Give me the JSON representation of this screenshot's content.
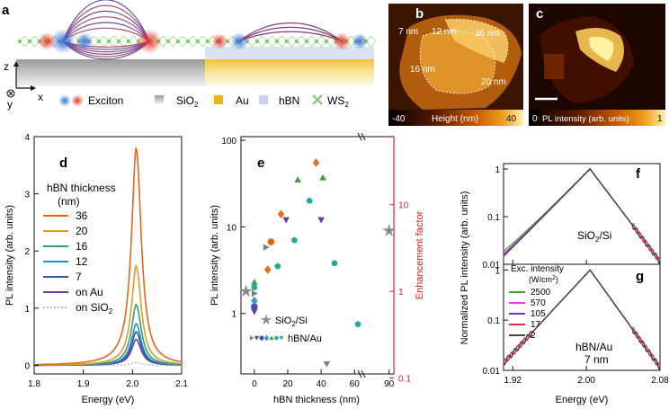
{
  "panel_letters": {
    "a": "a",
    "b": "b",
    "c": "c",
    "d": "d",
    "e": "e",
    "f": "f",
    "g": "g"
  },
  "panel_a": {
    "axes": {
      "z": "z",
      "x": "x",
      "y": "y"
    },
    "legend": [
      {
        "label": "Exciton",
        "color": "#e0503c"
      },
      {
        "label": "SiO2",
        "sub": "",
        "color": "#9a9a9a"
      },
      {
        "label": "Au",
        "color": "#f2b21a"
      },
      {
        "label": "hBN",
        "color": "#b9c8e6"
      },
      {
        "label": "WS",
        "sub": "2",
        "color": "#7cc36a"
      }
    ],
    "sio2_label": "SiO",
    "sio2_sub": "2"
  },
  "panel_b": {
    "labels": [
      "7 nm",
      "12 nm",
      "36 nm",
      "16 nm",
      "20 nm"
    ],
    "cbar_min": "-40",
    "cbar_title": "Height (nm)",
    "cbar_max": "40"
  },
  "panel_c": {
    "cbar_min": "0",
    "cbar_title": "PL intensity (arb. units)",
    "cbar_max": "1"
  },
  "chart_data": [
    {
      "id": "d",
      "type": "line",
      "xlabel": "Energy (eV)",
      "ylabel": "PL intensity (arb. units)",
      "xlim": [
        1.8,
        2.1
      ],
      "ylim": [
        -0.15,
        4.0
      ],
      "xticks": [
        "1.8",
        "1.9",
        "2.0",
        "2.1"
      ],
      "xtick_values": [
        1.8,
        1.9,
        2.0,
        2.1
      ],
      "yticks": [
        "0",
        "1",
        "2",
        "3",
        "4"
      ],
      "ytick_values": [
        0,
        1,
        2,
        3,
        4
      ],
      "legend_title": [
        "hBN thickness",
        "(nm)"
      ],
      "peak_energy": 2.008,
      "series": [
        {
          "name": "36",
          "peak": 3.76,
          "color": "#e0681e"
        },
        {
          "name": "20",
          "peak": 1.72,
          "color": "#d4a030"
        },
        {
          "name": "16",
          "peak": 1.05,
          "color": "#3aa06a"
        },
        {
          "name": "12",
          "peak": 0.72,
          "color": "#2a8cc8"
        },
        {
          "name": "7",
          "peak": 0.58,
          "color": "#2d5aa8"
        },
        {
          "name": "on Au",
          "peak": 0.45,
          "color": "#6a3aa0"
        },
        {
          "name": "on SiO2",
          "label": "on SiO",
          "sub": "2",
          "peak": 0.05,
          "color": "#bfbfbf"
        }
      ]
    },
    {
      "id": "e",
      "type": "scatter",
      "xlabel": "hBN thickness (nm)",
      "ylabel": "PL intensity (arb. units)",
      "y2label": "Enhancement factor",
      "xticks": [
        "0",
        "20",
        "40",
        "60",
        "90"
      ],
      "yticks": [
        "1",
        "10",
        "100"
      ],
      "y2ticks": [
        "0.1",
        "1",
        "10"
      ],
      "ylim_log": [
        0.2,
        110
      ],
      "legend": [
        {
          "label": "SiO",
          "sub": "2",
          "label_tail": "/Si",
          "marker": "star",
          "color": "#888888"
        },
        {
          "label": "hBN/Au",
          "marker": "mixed"
        }
      ],
      "sio2_points": [
        {
          "x": -5,
          "y": 1.8
        },
        {
          "x": 90,
          "y": 9
        }
      ],
      "hbn_points": [
        {
          "x": 0,
          "y": 1.7,
          "m": "tri-r",
          "c": "#808080"
        },
        {
          "x": 0,
          "y": 1.05,
          "m": "tri-d",
          "c": "#6a3aa0"
        },
        {
          "x": 0,
          "y": 1.2,
          "m": "circle",
          "c": "#4a4ab8"
        },
        {
          "x": 0,
          "y": 1.4,
          "m": "diamond",
          "c": "#30a0c8"
        },
        {
          "x": 0,
          "y": 2.3,
          "m": "tri-u",
          "c": "#3aa040"
        },
        {
          "x": 0,
          "y": 2.0,
          "m": "pent",
          "c": "#20a8a0"
        },
        {
          "x": 7,
          "y": 5.8,
          "m": "tri-r",
          "c": "#808080"
        },
        {
          "x": 8,
          "y": 3.2,
          "m": "diamond",
          "c": "#e07020"
        },
        {
          "x": 10,
          "y": 6.7,
          "m": "circle",
          "c": "#e06020"
        },
        {
          "x": 14,
          "y": 3.5,
          "m": "pent",
          "c": "#20a8a0"
        },
        {
          "x": 16,
          "y": 14,
          "m": "diamond",
          "c": "#e07020"
        },
        {
          "x": 19,
          "y": 12,
          "m": "tri-d",
          "c": "#6a3aa0"
        },
        {
          "x": 24,
          "y": 7,
          "m": "pent",
          "c": "#20a8a0"
        },
        {
          "x": 26,
          "y": 35,
          "m": "tri-u",
          "c": "#3aa040"
        },
        {
          "x": 33,
          "y": 20,
          "m": "pent",
          "c": "#20a8a0"
        },
        {
          "x": 37,
          "y": 55,
          "m": "diamond",
          "c": "#e07020"
        },
        {
          "x": 40,
          "y": 12,
          "m": "tri-d",
          "c": "#6a3aa0"
        },
        {
          "x": 41,
          "y": 37,
          "m": "tri-u",
          "c": "#3aa040"
        },
        {
          "x": 48,
          "y": 3.8,
          "m": "pent",
          "c": "#20a8a0"
        },
        {
          "x": 62,
          "y": 0.75,
          "m": "pent",
          "c": "#20a8a0"
        },
        {
          "x": 64,
          "y": 0.26,
          "m": "tri-d",
          "c": "#808080"
        }
      ],
      "fit_curve": {
        "color": "#e02020",
        "peak_x": 33,
        "peak_y": 32
      }
    },
    {
      "id": "f",
      "type": "line",
      "ylabel": "Normalized PL intensity (arb. units)",
      "xlim": [
        1.91,
        2.08
      ],
      "yticks": [
        "1",
        "0.1",
        "0.01"
      ],
      "annotation": "SiO",
      "annotation_sub": "2",
      "annotation_tail": "/Si"
    },
    {
      "id": "g",
      "type": "line",
      "xlabel": "Energy (eV)",
      "xticks": [
        "1.92",
        "2.00",
        "2.08"
      ],
      "xtick_values": [
        1.92,
        2.0,
        2.08
      ],
      "xlim": [
        1.91,
        2.08
      ],
      "yticks": [
        "1",
        "0.1",
        "0.01"
      ],
      "legend_title": "Exc. intensity",
      "legend_units": "(W/cm",
      "legend_units_sup": "2",
      "legend_units_tail": ")",
      "annotation": [
        "hBN/Au",
        "7 nm"
      ],
      "series": [
        {
          "name": "2500",
          "color": "#3aa040"
        },
        {
          "name": "570",
          "color": "#e040e0"
        },
        {
          "name": "105",
          "color": "#6a3ad8"
        },
        {
          "name": "17",
          "color": "#e03040"
        },
        {
          "name": "2",
          "color": "#444444"
        }
      ]
    }
  ]
}
